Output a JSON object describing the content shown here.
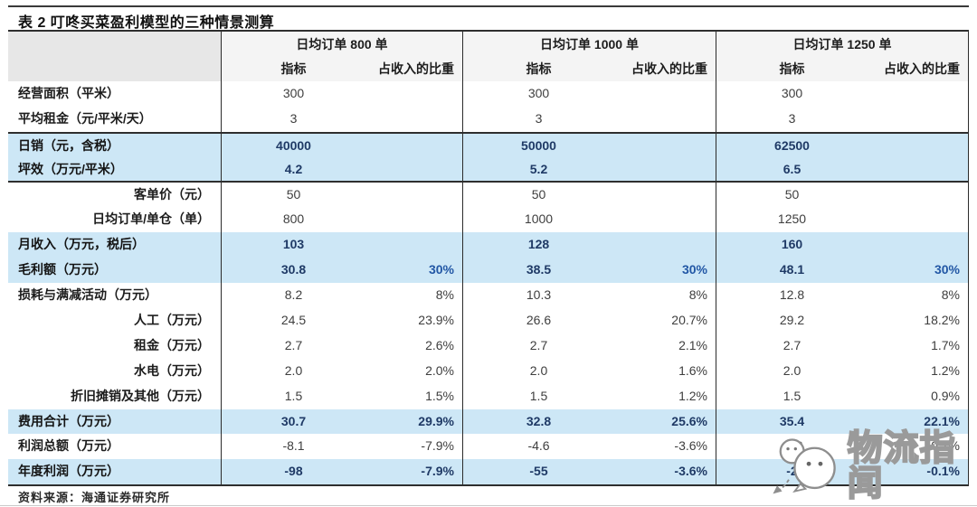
{
  "title": "表 2 叮咚买菜盈利模型的三种情景测算",
  "source_note": "资料来源：海通证券研究所",
  "watermark": {
    "text": "物流指闻",
    "logo": "wechat-speech-bubbles"
  },
  "colors": {
    "highlight_bg": "#cde7f6",
    "navy": "#1f3a66",
    "accent_blue": "#2257a5",
    "header_bg": "#f4f4f4",
    "label_header_bg": "#e7e7e7"
  },
  "table": {
    "scenario_headers": [
      "日均订单 800 单",
      "日均订单 1000 单",
      "日均订单 1250 单"
    ],
    "sub_headers": {
      "metric": "指标",
      "pct_share": "占收入的比重"
    },
    "rows": [
      {
        "label": "经营面积（平米）",
        "align": "left",
        "highlight": false,
        "cells": [
          {
            "value": "300",
            "pct": ""
          },
          {
            "value": "300",
            "pct": ""
          },
          {
            "value": "300",
            "pct": ""
          }
        ]
      },
      {
        "label": "平均租金（元/平米/天）",
        "align": "left",
        "highlight": false,
        "cells": [
          {
            "value": "3",
            "pct": ""
          },
          {
            "value": "3",
            "pct": ""
          },
          {
            "value": "3",
            "pct": ""
          }
        ]
      },
      {
        "label": "日销（元，含税）",
        "align": "left",
        "highlight": true,
        "border_top": true,
        "cells": [
          {
            "value": "40000",
            "pct": ""
          },
          {
            "value": "50000",
            "pct": ""
          },
          {
            "value": "62500",
            "pct": ""
          }
        ]
      },
      {
        "label": "坪效（万元/平米）",
        "align": "left",
        "highlight": true,
        "border_bottom": true,
        "cells": [
          {
            "value": "4.2",
            "pct": ""
          },
          {
            "value": "5.2",
            "pct": ""
          },
          {
            "value": "6.5",
            "pct": ""
          }
        ]
      },
      {
        "label": "客单价（元）",
        "align": "right",
        "highlight": false,
        "cells": [
          {
            "value": "50",
            "pct": ""
          },
          {
            "value": "50",
            "pct": ""
          },
          {
            "value": "50",
            "pct": ""
          }
        ]
      },
      {
        "label": "日均订单/单仓（单）",
        "align": "right",
        "highlight": false,
        "cells": [
          {
            "value": "800",
            "pct": ""
          },
          {
            "value": "1000",
            "pct": ""
          },
          {
            "value": "1250",
            "pct": ""
          }
        ]
      },
      {
        "label": "月收入（万元，税后）",
        "align": "left",
        "highlight": true,
        "cells": [
          {
            "value": "103",
            "pct": ""
          },
          {
            "value": "128",
            "pct": ""
          },
          {
            "value": "160",
            "pct": ""
          }
        ]
      },
      {
        "label": "毛利额（万元）",
        "align": "left",
        "highlight": true,
        "blue_pct": true,
        "cells": [
          {
            "value": "30.8",
            "pct": "30%"
          },
          {
            "value": "38.5",
            "pct": "30%"
          },
          {
            "value": "48.1",
            "pct": "30%"
          }
        ]
      },
      {
        "label": "损耗与满减活动（万元）",
        "align": "left",
        "highlight": false,
        "cells": [
          {
            "value": "8.2",
            "pct": "8%"
          },
          {
            "value": "10.3",
            "pct": "8%"
          },
          {
            "value": "12.8",
            "pct": "8%"
          }
        ]
      },
      {
        "label": "人工（万元）",
        "align": "right",
        "highlight": false,
        "cells": [
          {
            "value": "24.5",
            "pct": "23.9%"
          },
          {
            "value": "26.6",
            "pct": "20.7%"
          },
          {
            "value": "29.2",
            "pct": "18.2%"
          }
        ]
      },
      {
        "label": "租金（万元）",
        "align": "right",
        "highlight": false,
        "cells": [
          {
            "value": "2.7",
            "pct": "2.6%"
          },
          {
            "value": "2.7",
            "pct": "2.1%"
          },
          {
            "value": "2.7",
            "pct": "1.7%"
          }
        ]
      },
      {
        "label": "水电（万元）",
        "align": "right",
        "highlight": false,
        "cells": [
          {
            "value": "2.0",
            "pct": "2.0%"
          },
          {
            "value": "2.0",
            "pct": "1.6%"
          },
          {
            "value": "2.0",
            "pct": "1.2%"
          }
        ]
      },
      {
        "label": "折旧摊销及其他（万元）",
        "align": "right",
        "highlight": false,
        "cells": [
          {
            "value": "1.5",
            "pct": "1.5%"
          },
          {
            "value": "1.5",
            "pct": "1.2%"
          },
          {
            "value": "1.5",
            "pct": "0.9%"
          }
        ]
      },
      {
        "label": "费用合计（万元）",
        "align": "left",
        "highlight": true,
        "cells": [
          {
            "value": "30.7",
            "pct": "29.9%"
          },
          {
            "value": "32.8",
            "pct": "25.6%"
          },
          {
            "value": "35.4",
            "pct": "22.1%"
          }
        ]
      },
      {
        "label": "利润总额（万元）",
        "align": "left",
        "highlight": false,
        "cells": [
          {
            "value": "-8.1",
            "pct": "-7.9%"
          },
          {
            "value": "-4.6",
            "pct": "-3.6%"
          },
          {
            "value": "-0.2",
            "pct": "-0.1%"
          }
        ]
      },
      {
        "label": "年度利润（万元）",
        "align": "left",
        "highlight": true,
        "cells": [
          {
            "value": "-98",
            "pct": "-7.9%"
          },
          {
            "value": "-55",
            "pct": "-3.6%"
          },
          {
            "value": "-2",
            "pct": "-0.1%"
          }
        ]
      }
    ]
  }
}
